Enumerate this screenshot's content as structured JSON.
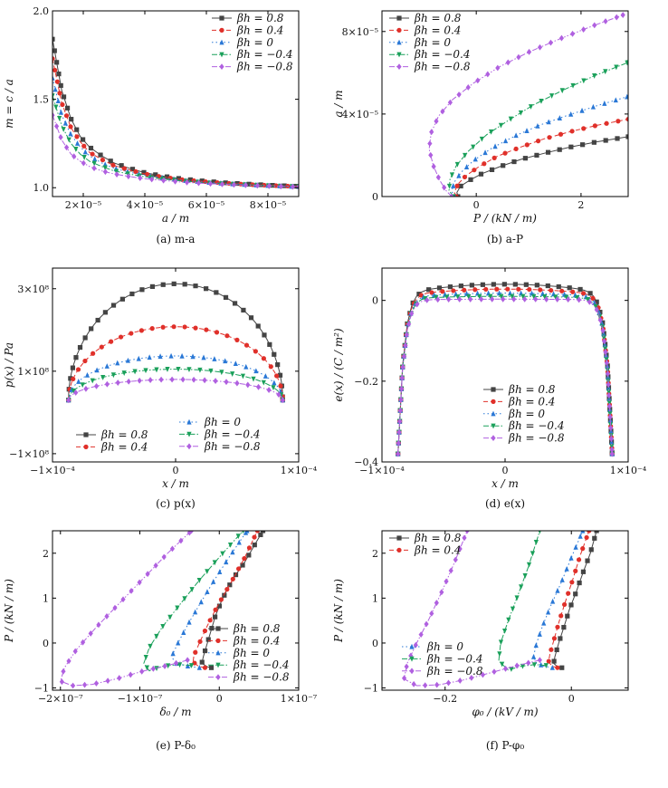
{
  "series_styles": [
    {
      "key": "b08",
      "label": "βh = 0.8",
      "color": "#444444",
      "marker": "square",
      "dash": ""
    },
    {
      "key": "b04",
      "label": "βh = 0.4",
      "color": "#e0302a",
      "marker": "circle",
      "dash": "5,3"
    },
    {
      "key": "b0",
      "label": "βh = 0",
      "color": "#2a78d6",
      "marker": "triUp",
      "dash": "1.5,3"
    },
    {
      "key": "bm04",
      "label": "βh = −0.4",
      "color": "#1aa05a",
      "marker": "triDown",
      "dash": "6,2,1.5,2"
    },
    {
      "key": "bm08",
      "label": "βh = −0.8",
      "color": "#b060e0",
      "marker": "diamond",
      "dash": "6,2,1.5,2,1.5,2"
    }
  ],
  "chart_data": [
    {
      "id": "a",
      "type": "line",
      "caption": "(a) m-a",
      "xlabel": "a / m",
      "ylabel": "m = c / a",
      "xlim": [
        1e-05,
        9e-05
      ],
      "ylim": [
        0.95,
        2.0
      ],
      "xticks": [
        {
          "v": 2e-05,
          "t": "2×10⁻⁵"
        },
        {
          "v": 4e-05,
          "t": "4×10⁻⁵"
        },
        {
          "v": 6e-05,
          "t": "6×10⁻⁵"
        },
        {
          "v": 8e-05,
          "t": "8×10⁻⁵"
        }
      ],
      "yticks": [
        {
          "v": 1.0,
          "t": "1.0"
        },
        {
          "v": 1.5,
          "t": "1.5"
        },
        {
          "v": 2.0,
          "t": "2.0"
        }
      ],
      "legend": "top-right",
      "legend_keys": [
        "b08",
        "b04",
        "b0",
        "bm04",
        "bm08"
      ],
      "series": [
        {
          "key": "b08",
          "x": [
            1e-05,
            1.3e-05,
            1.6e-05,
            1.9e-05,
            2.2e-05,
            2.6e-05,
            3e-05,
            3.5e-05,
            4e-05,
            4.6e-05,
            5.2e-05,
            5.9e-05,
            6.6e-05,
            7.4e-05,
            8.2e-05,
            9e-05
          ],
          "y": [
            1.84,
            1.55,
            1.39,
            1.29,
            1.23,
            1.18,
            1.14,
            1.11,
            1.085,
            1.065,
            1.05,
            1.038,
            1.028,
            1.02,
            1.013,
            1.008
          ]
        },
        {
          "key": "b04",
          "x": [
            1e-05,
            1.3e-05,
            1.6e-05,
            1.9e-05,
            2.2e-05,
            2.6e-05,
            3e-05,
            3.5e-05,
            4e-05,
            4.6e-05,
            5.2e-05,
            5.9e-05,
            6.6e-05,
            7.4e-05,
            8.2e-05,
            9e-05
          ],
          "y": [
            1.73,
            1.48,
            1.34,
            1.26,
            1.2,
            1.16,
            1.125,
            1.1,
            1.078,
            1.06,
            1.046,
            1.035,
            1.026,
            1.018,
            1.012,
            1.007
          ]
        },
        {
          "key": "b0",
          "x": [
            1e-05,
            1.3e-05,
            1.6e-05,
            1.9e-05,
            2.2e-05,
            2.6e-05,
            3e-05,
            3.5e-05,
            4e-05,
            4.6e-05,
            5.2e-05,
            5.9e-05,
            6.6e-05,
            7.4e-05,
            8.2e-05,
            9e-05
          ],
          "y": [
            1.62,
            1.41,
            1.3,
            1.23,
            1.18,
            1.14,
            1.11,
            1.088,
            1.07,
            1.055,
            1.042,
            1.032,
            1.024,
            1.017,
            1.011,
            1.006
          ]
        },
        {
          "key": "bm04",
          "x": [
            1e-05,
            1.3e-05,
            1.6e-05,
            1.9e-05,
            2.2e-05,
            2.6e-05,
            3e-05,
            3.5e-05,
            4e-05,
            4.6e-05,
            5.2e-05,
            5.9e-05,
            6.6e-05,
            7.4e-05,
            8.2e-05,
            9e-05
          ],
          "y": [
            1.52,
            1.35,
            1.25,
            1.19,
            1.15,
            1.12,
            1.095,
            1.077,
            1.062,
            1.049,
            1.038,
            1.029,
            1.022,
            1.016,
            1.01,
            1.006
          ]
        },
        {
          "key": "bm08",
          "x": [
            1e-05,
            1.3e-05,
            1.6e-05,
            1.9e-05,
            2.2e-05,
            2.6e-05,
            3e-05,
            3.5e-05,
            4e-05,
            4.6e-05,
            5.2e-05,
            5.9e-05,
            6.6e-05,
            7.4e-05,
            8.2e-05,
            9e-05
          ],
          "y": [
            1.41,
            1.27,
            1.19,
            1.15,
            1.12,
            1.095,
            1.078,
            1.063,
            1.051,
            1.041,
            1.032,
            1.025,
            1.019,
            1.014,
            1.009,
            1.005
          ]
        }
      ]
    },
    {
      "id": "b",
      "type": "line",
      "caption": "(b) a-P",
      "xlabel": "P / (kN / m)",
      "ylabel": "a / m",
      "xlim": [
        -1.8,
        2.9
      ],
      "ylim": [
        0,
        9e-05
      ],
      "xticks": [
        {
          "v": 0,
          "t": "0"
        },
        {
          "v": 2,
          "t": "2"
        }
      ],
      "yticks": [
        {
          "v": 0,
          "t": "0"
        },
        {
          "v": 4e-05,
          "t": "4×10⁻⁵"
        },
        {
          "v": 8e-05,
          "t": "8×10⁻⁵"
        }
      ],
      "legend": "top-left",
      "legend_keys": [
        "b08",
        "b04",
        "b0",
        "bm04",
        "bm08"
      ],
      "series": [
        {
          "key": "b08",
          "x": [
            -0.35,
            -0.37,
            -0.3,
            -0.12,
            0.1,
            0.45,
            0.85,
            1.3,
            1.8,
            2.3,
            2.9
          ],
          "y": [
            0.0,
            2e-06,
            5e-06,
            8e-06,
            1.1e-05,
            1.45e-05,
            1.8e-05,
            2.1e-05,
            2.4e-05,
            2.65e-05,
            2.9e-05
          ]
        },
        {
          "key": "b04",
          "x": [
            -0.38,
            -0.42,
            -0.35,
            -0.2,
            0.05,
            0.4,
            0.85,
            1.3,
            1.8,
            2.3,
            2.9
          ],
          "y": [
            0.0,
            2e-06,
            6e-06,
            1e-05,
            1.45e-05,
            1.95e-05,
            2.4e-05,
            2.8e-05,
            3.15e-05,
            3.45e-05,
            3.75e-05
          ]
        },
        {
          "key": "b0",
          "x": [
            -0.41,
            -0.47,
            -0.42,
            -0.28,
            -0.05,
            0.3,
            0.75,
            1.2,
            1.7,
            2.3,
            2.9
          ],
          "y": [
            0.0,
            2.5e-06,
            7e-06,
            1.2e-05,
            1.75e-05,
            2.35e-05,
            2.95e-05,
            3.45e-05,
            3.9e-05,
            4.4e-05,
            4.85e-05
          ]
        },
        {
          "key": "bm04",
          "x": [
            -0.44,
            -0.52,
            -0.5,
            -0.38,
            -0.15,
            0.2,
            0.65,
            1.1,
            1.65,
            2.25,
            2.9
          ],
          "y": [
            0.0,
            3e-06,
            8.5e-06,
            1.5e-05,
            2.2e-05,
            3e-05,
            3.75e-05,
            4.45e-05,
            5.15e-05,
            5.85e-05,
            6.5e-05
          ]
        },
        {
          "key": "bm08",
          "x": [
            -0.47,
            -0.58,
            -0.7,
            -0.82,
            -0.9,
            -0.86,
            -0.72,
            -0.45,
            -0.05,
            0.45,
            1.0,
            1.6,
            2.2,
            2.8
          ],
          "y": [
            0.0,
            3e-06,
            8e-06,
            1.5e-05,
            2.3e-05,
            3.1e-05,
            3.9e-05,
            4.7e-05,
            5.5e-05,
            6.3e-05,
            7e-05,
            7.65e-05,
            8.25e-05,
            8.8e-05
          ]
        }
      ]
    },
    {
      "id": "c",
      "type": "line",
      "caption": "(c) p(x)",
      "xlabel": "x / m",
      "ylabel": "p(x) / Pa",
      "xlim": [
        -0.0001,
        0.0001
      ],
      "ylim": [
        -120000000.0,
        350000000.0
      ],
      "xticks": [
        {
          "v": -0.0001,
          "t": "−1×10⁻⁴"
        },
        {
          "v": 0,
          "t": "0"
        },
        {
          "v": 0.0001,
          "t": "1×10⁻⁴"
        }
      ],
      "yticks": [
        {
          "v": -100000000.0,
          "t": "−1×10⁸"
        },
        {
          "v": 100000000.0,
          "t": "1×10⁸"
        },
        {
          "v": 300000000.0,
          "t": "3×10⁸"
        }
      ],
      "legend": "bottom",
      "legend_keys": [
        "b08",
        "b04",
        "b0",
        "bm04",
        "bm08"
      ],
      "half_width": 8.7e-05,
      "edge_value": 30000000.0,
      "semi_ellipse": true,
      "series": [
        {
          "key": "b08",
          "peak": 312000000.0
        },
        {
          "key": "b04",
          "peak": 208000000.0
        },
        {
          "key": "b0",
          "peak": 137000000.0
        },
        {
          "key": "bm04",
          "peak": 105000000.0
        },
        {
          "key": "bm08",
          "peak": 80000000.0
        }
      ]
    },
    {
      "id": "d",
      "type": "line",
      "caption": "(d) e(x)",
      "xlabel": "x / m",
      "ylabel": "e(x) / (C / m²)",
      "xlim": [
        -0.0001,
        0.0001
      ],
      "ylim": [
        -0.4,
        0.08
      ],
      "xticks": [
        {
          "v": -0.0001,
          "t": "−1×10⁻⁴"
        },
        {
          "v": 0,
          "t": "0"
        },
        {
          "v": 0.0001,
          "t": "1×10⁻⁴"
        }
      ],
      "yticks": [
        {
          "v": -0.4,
          "t": "−0.4"
        },
        {
          "v": -0.2,
          "t": "−0.2"
        },
        {
          "v": 0,
          "t": "0"
        }
      ],
      "legend": "lower-center",
      "legend_keys": [
        "b08",
        "b04",
        "b0",
        "bm04",
        "bm08"
      ],
      "half_width": 8.7e-05,
      "edge_value": -0.38,
      "plateau_shape": true,
      "series": [
        {
          "key": "b08",
          "center": 0.04
        },
        {
          "key": "b04",
          "center": 0.028
        },
        {
          "key": "b0",
          "center": 0.018
        },
        {
          "key": "bm04",
          "center": 0.01
        },
        {
          "key": "bm08",
          "center": 0.003
        }
      ]
    },
    {
      "id": "e",
      "type": "line",
      "caption": "(e) P-δ₀",
      "xlabel": "δ₀ / m",
      "ylabel": "P / (kN / m)",
      "xlim": [
        -2.1e-07,
        1e-07
      ],
      "ylim": [
        -1.05,
        2.5
      ],
      "xticks": [
        {
          "v": -2e-07,
          "t": "−2×10⁻⁷"
        },
        {
          "v": -1e-07,
          "t": "−1×10⁻⁷"
        },
        {
          "v": 0,
          "t": "0"
        },
        {
          "v": 1e-07,
          "t": "1×10⁻⁷"
        }
      ],
      "yticks": [
        {
          "v": -1,
          "t": "−1"
        },
        {
          "v": 0,
          "t": "0"
        },
        {
          "v": 1,
          "t": "1"
        },
        {
          "v": 2,
          "t": "2"
        }
      ],
      "legend": "lower-right",
      "legend_keys": [
        "b08",
        "b04",
        "b0",
        "bm04",
        "bm08"
      ],
      "series": [
        {
          "key": "b08",
          "x": [
            -1e-08,
            -1.5e-08,
            -2.2e-08,
            -2e-08,
            -1.5e-08,
            -1e-08,
            -5e-09,
            2e-09,
            1e-08,
            2e-08,
            3.2e-08,
            4.5e-08,
            5.5e-08
          ],
          "y": [
            -0.55,
            -0.53,
            -0.45,
            -0.3,
            0.0,
            0.3,
            0.6,
            0.9,
            1.2,
            1.5,
            1.8,
            2.2,
            2.5
          ]
        },
        {
          "key": "b04",
          "x": [
            -1.8e-08,
            -2.6e-08,
            -3.3e-08,
            -3.2e-08,
            -2.5e-08,
            -1.6e-08,
            -6e-09,
            5e-09,
            1.8e-08,
            3.2e-08,
            4.8e-08
          ],
          "y": [
            -0.55,
            -0.52,
            -0.42,
            -0.28,
            0.0,
            0.35,
            0.7,
            1.05,
            1.45,
            1.9,
            2.5
          ]
        },
        {
          "key": "b0",
          "x": [
            -2.5e-08,
            -3.8e-08,
            -5.5e-08,
            -6e-08,
            -5.2e-08,
            -4e-08,
            -2.5e-08,
            -8e-09,
            1.2e-08,
            3.5e-08
          ],
          "y": [
            -0.55,
            -0.52,
            -0.45,
            -0.3,
            0.0,
            0.4,
            0.85,
            1.35,
            1.9,
            2.5
          ]
        },
        {
          "key": "bm04",
          "x": [
            -3.5e-08,
            -5.2e-08,
            -7.2e-08,
            -8.8e-08,
            -9.5e-08,
            -8.8e-08,
            -7.2e-08,
            -5e-08,
            -2.5e-08,
            2e-09,
            3e-08
          ],
          "y": [
            -0.5,
            -0.48,
            -0.52,
            -0.62,
            -0.45,
            -0.1,
            0.35,
            0.85,
            1.4,
            1.95,
            2.5
          ]
        },
        {
          "key": "bm08",
          "x": [
            -4e-08,
            -6.5e-08,
            -9.5e-08,
            -1.3e-07,
            -1.6e-07,
            -1.85e-07,
            -2e-07,
            -1.95e-07,
            -1.8e-07,
            -1.55e-07,
            -1.25e-07,
            -9.5e-08,
            -6.5e-08,
            -3.5e-08
          ],
          "y": [
            -0.38,
            -0.5,
            -0.62,
            -0.8,
            -0.92,
            -0.95,
            -0.85,
            -0.55,
            -0.15,
            0.35,
            0.9,
            1.45,
            2.0,
            2.5
          ]
        }
      ]
    },
    {
      "id": "f",
      "type": "line",
      "caption": "(f) P-φ₀",
      "xlabel": "φ₀ / (kV / m)",
      "ylabel": "P / (kN / m)",
      "xlim": [
        -0.3,
        0.09
      ],
      "ylim": [
        -1.05,
        2.5
      ],
      "xticks": [
        {
          "v": -0.2,
          "t": "−0.2"
        },
        {
          "v": 0,
          "t": "0"
        }
      ],
      "yticks": [
        {
          "v": -1,
          "t": "−1"
        },
        {
          "v": 0,
          "t": "0"
        },
        {
          "v": 1,
          "t": "1"
        },
        {
          "v": 2,
          "t": "2"
        }
      ],
      "legend": "split",
      "legend_keys_top": [
        "b08",
        "b04"
      ],
      "legend_keys_bottom": [
        "b0",
        "bm04",
        "bm08"
      ],
      "series": [
        {
          "key": "b08",
          "x": [
            -0.015,
            -0.022,
            -0.028,
            -0.026,
            -0.02,
            -0.012,
            -0.003,
            0.008,
            0.018,
            0.03,
            0.04
          ],
          "y": [
            -0.55,
            -0.53,
            -0.45,
            -0.3,
            0.0,
            0.35,
            0.75,
            1.15,
            1.55,
            2.0,
            2.5
          ]
        },
        {
          "key": "b04",
          "x": [
            -0.022,
            -0.03,
            -0.036,
            -0.034,
            -0.028,
            -0.02,
            -0.01,
            0.002,
            0.014,
            0.028
          ],
          "y": [
            -0.55,
            -0.52,
            -0.42,
            -0.25,
            0.05,
            0.45,
            0.9,
            1.4,
            1.95,
            2.5
          ]
        },
        {
          "key": "b0",
          "x": [
            -0.03,
            -0.042,
            -0.055,
            -0.06,
            -0.055,
            -0.045,
            -0.032,
            -0.016,
            0.0,
            0.018
          ],
          "y": [
            -0.55,
            -0.52,
            -0.45,
            -0.3,
            0.0,
            0.4,
            0.85,
            1.35,
            1.9,
            2.5
          ]
        },
        {
          "key": "bm04",
          "x": [
            -0.04,
            -0.058,
            -0.08,
            -0.1,
            -0.115,
            -0.112,
            -0.1,
            -0.085,
            -0.068,
            -0.05
          ],
          "y": [
            -0.5,
            -0.48,
            -0.52,
            -0.6,
            -0.4,
            0.0,
            0.5,
            1.05,
            1.7,
            2.5
          ]
        },
        {
          "key": "bm08",
          "x": [
            -0.05,
            -0.085,
            -0.125,
            -0.17,
            -0.21,
            -0.245,
            -0.265,
            -0.26,
            -0.245,
            -0.225,
            -0.205,
            -0.185,
            -0.165
          ],
          "y": [
            -0.38,
            -0.5,
            -0.65,
            -0.82,
            -0.93,
            -0.95,
            -0.8,
            -0.45,
            0.0,
            0.55,
            1.15,
            1.8,
            2.5
          ]
        }
      ]
    }
  ]
}
